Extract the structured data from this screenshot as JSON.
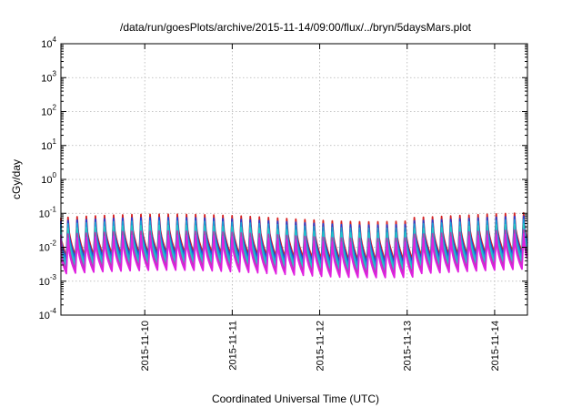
{
  "chart_data": {
    "type": "line",
    "title": "/data/run/goesPlots/archive/2015-11-14/09:00/flux/../bryn/5daysMars.plot",
    "xlabel": "Coordinated Universal Time (UTC)",
    "ylabel": "cGy/day",
    "yscale": "log",
    "ylim": [
      0.0001,
      10000
    ],
    "y_ticks": [
      {
        "base": "10",
        "exp": "-4",
        "value": 0.0001
      },
      {
        "base": "10",
        "exp": "-3",
        "value": 0.001
      },
      {
        "base": "10",
        "exp": "-2",
        "value": 0.01
      },
      {
        "base": "10",
        "exp": "-1",
        "value": 0.1
      },
      {
        "base": "10",
        "exp": "0",
        "value": 1
      },
      {
        "base": "10",
        "exp": "1",
        "value": 10
      },
      {
        "base": "10",
        "exp": "2",
        "value": 100
      },
      {
        "base": "10",
        "exp": "3",
        "value": 1000
      },
      {
        "base": "10",
        "exp": "4",
        "value": 10000
      }
    ],
    "xlim": [
      "2015-11-09 01:00",
      "2015-11-14 09:00"
    ],
    "x_ticks": [
      "2015-11-10",
      "2015-11-11",
      "2015-11-12",
      "2015-11-13",
      "2015-11-14"
    ],
    "grid": true,
    "legend": "none",
    "pattern": {
      "sawtooth_period_hours": 2.5,
      "note_values": "each series repeats a sharp rise followed by a decay every cycle"
    },
    "series": [
      {
        "color": "#d62020",
        "peak": 0.075,
        "trough": 0.0055
      },
      {
        "color": "#2a3fd0",
        "peak": 0.06,
        "trough": 0.0045
      },
      {
        "color": "#1a9ad6",
        "peak": 0.048,
        "trough": 0.0036
      },
      {
        "color": "#20c8c8",
        "peak": 0.035,
        "trough": 0.0028
      },
      {
        "color": "#b040b0",
        "peak": 0.024,
        "trough": 0.0021
      },
      {
        "color": "#e020e0",
        "peak": 0.018,
        "trough": 0.0017
      }
    ]
  }
}
